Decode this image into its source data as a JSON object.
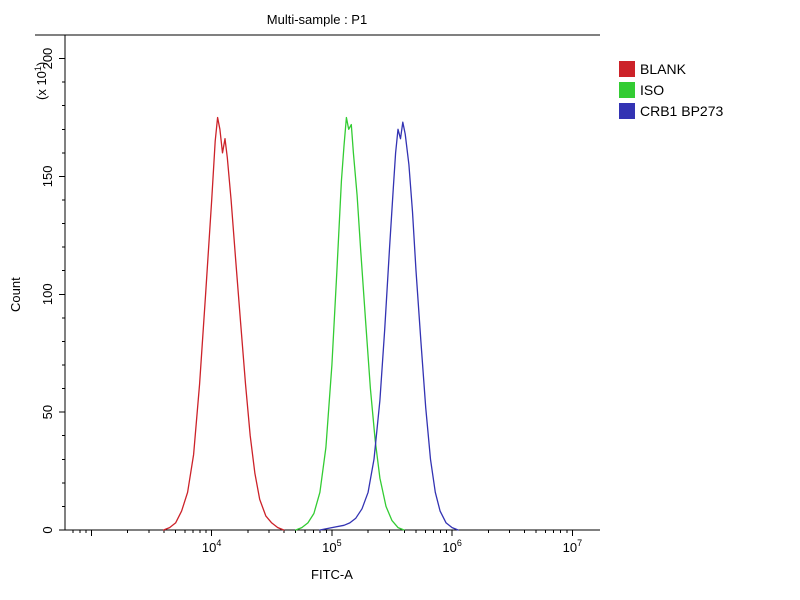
{
  "chart_data": {
    "type": "line",
    "subtype": "flow-cytometry-histogram-overlay",
    "title": "Multi-sample : P1",
    "xlabel": "FITC-A",
    "ylabel": "Count",
    "y_multiplier_label": {
      "prefix": "(x 10",
      "exp": "1",
      "suffix": ")"
    },
    "grid": false,
    "legend_position": "right-outside",
    "colors": {
      "background": "#ffffff",
      "axis": "#000000"
    },
    "x_axis": {
      "scale": "log10",
      "log_min": 2.78,
      "log_max": 7.23,
      "major_ticks": [
        {
          "value": 10000,
          "base": "10",
          "exp": "4"
        },
        {
          "value": 100000,
          "base": "10",
          "exp": "5"
        },
        {
          "value": 1000000,
          "base": "10",
          "exp": "6"
        },
        {
          "value": 10000000,
          "base": "10",
          "exp": "7"
        }
      ],
      "minor_ticks": "log sub-decades 2-9 per decade"
    },
    "y_axis": {
      "min": 0,
      "max": 210,
      "major_tick_step": 50,
      "minor_tick_step": 10,
      "major_ticks": [
        {
          "value": 0,
          "label": "0"
        },
        {
          "value": 50,
          "label": "50"
        },
        {
          "value": 100,
          "label": "100"
        },
        {
          "value": 150,
          "label": "150"
        },
        {
          "value": 200,
          "label": "200"
        }
      ]
    },
    "series": [
      {
        "name": "BLANK",
        "color": "#cc2229",
        "points": [
          [
            3980,
            0
          ],
          [
            4470,
            1
          ],
          [
            5010,
            3
          ],
          [
            5620,
            8
          ],
          [
            6310,
            16
          ],
          [
            7080,
            32
          ],
          [
            7940,
            62
          ],
          [
            8910,
            100
          ],
          [
            10000,
            140
          ],
          [
            10700,
            165
          ],
          [
            11200,
            175
          ],
          [
            11700,
            170
          ],
          [
            12300,
            160
          ],
          [
            12900,
            166
          ],
          [
            13500,
            158
          ],
          [
            14500,
            140
          ],
          [
            15800,
            115
          ],
          [
            17400,
            88
          ],
          [
            19100,
            62
          ],
          [
            20900,
            40
          ],
          [
            22900,
            24
          ],
          [
            25100,
            13
          ],
          [
            28200,
            6
          ],
          [
            31600,
            3
          ],
          [
            35500,
            1
          ],
          [
            39800,
            0
          ]
        ]
      },
      {
        "name": "ISO",
        "color": "#33cc33",
        "points": [
          [
            50100,
            0
          ],
          [
            56200,
            1
          ],
          [
            63100,
            3
          ],
          [
            70800,
            7
          ],
          [
            79400,
            16
          ],
          [
            89100,
            35
          ],
          [
            100000,
            70
          ],
          [
            110000,
            110
          ],
          [
            120000,
            148
          ],
          [
            126000,
            163
          ],
          [
            132000,
            175
          ],
          [
            138000,
            170
          ],
          [
            145000,
            172
          ],
          [
            151000,
            160
          ],
          [
            162000,
            142
          ],
          [
            174000,
            118
          ],
          [
            191000,
            88
          ],
          [
            209000,
            60
          ],
          [
            229000,
            38
          ],
          [
            251000,
            22
          ],
          [
            282000,
            10
          ],
          [
            316000,
            4
          ],
          [
            355000,
            1
          ],
          [
            398000,
            0
          ]
        ]
      },
      {
        "name": "CRB1 BP273",
        "color": "#3333b3",
        "points": [
          [
            79400,
            0
          ],
          [
            100000,
            1
          ],
          [
            126000,
            2
          ],
          [
            141000,
            3
          ],
          [
            158000,
            5
          ],
          [
            178000,
            9
          ],
          [
            200000,
            16
          ],
          [
            224000,
            30
          ],
          [
            251000,
            55
          ],
          [
            275000,
            85
          ],
          [
            302000,
            120
          ],
          [
            324000,
            145
          ],
          [
            339000,
            160
          ],
          [
            355000,
            170
          ],
          [
            372000,
            166
          ],
          [
            389000,
            173
          ],
          [
            407000,
            168
          ],
          [
            437000,
            155
          ],
          [
            468000,
            135
          ],
          [
            501000,
            110
          ],
          [
            550000,
            80
          ],
          [
            603000,
            52
          ],
          [
            661000,
            30
          ],
          [
            724000,
            16
          ],
          [
            794000,
            8
          ],
          [
            891000,
            3
          ],
          [
            1000000,
            1
          ],
          [
            1122000,
            0
          ]
        ]
      }
    ]
  }
}
